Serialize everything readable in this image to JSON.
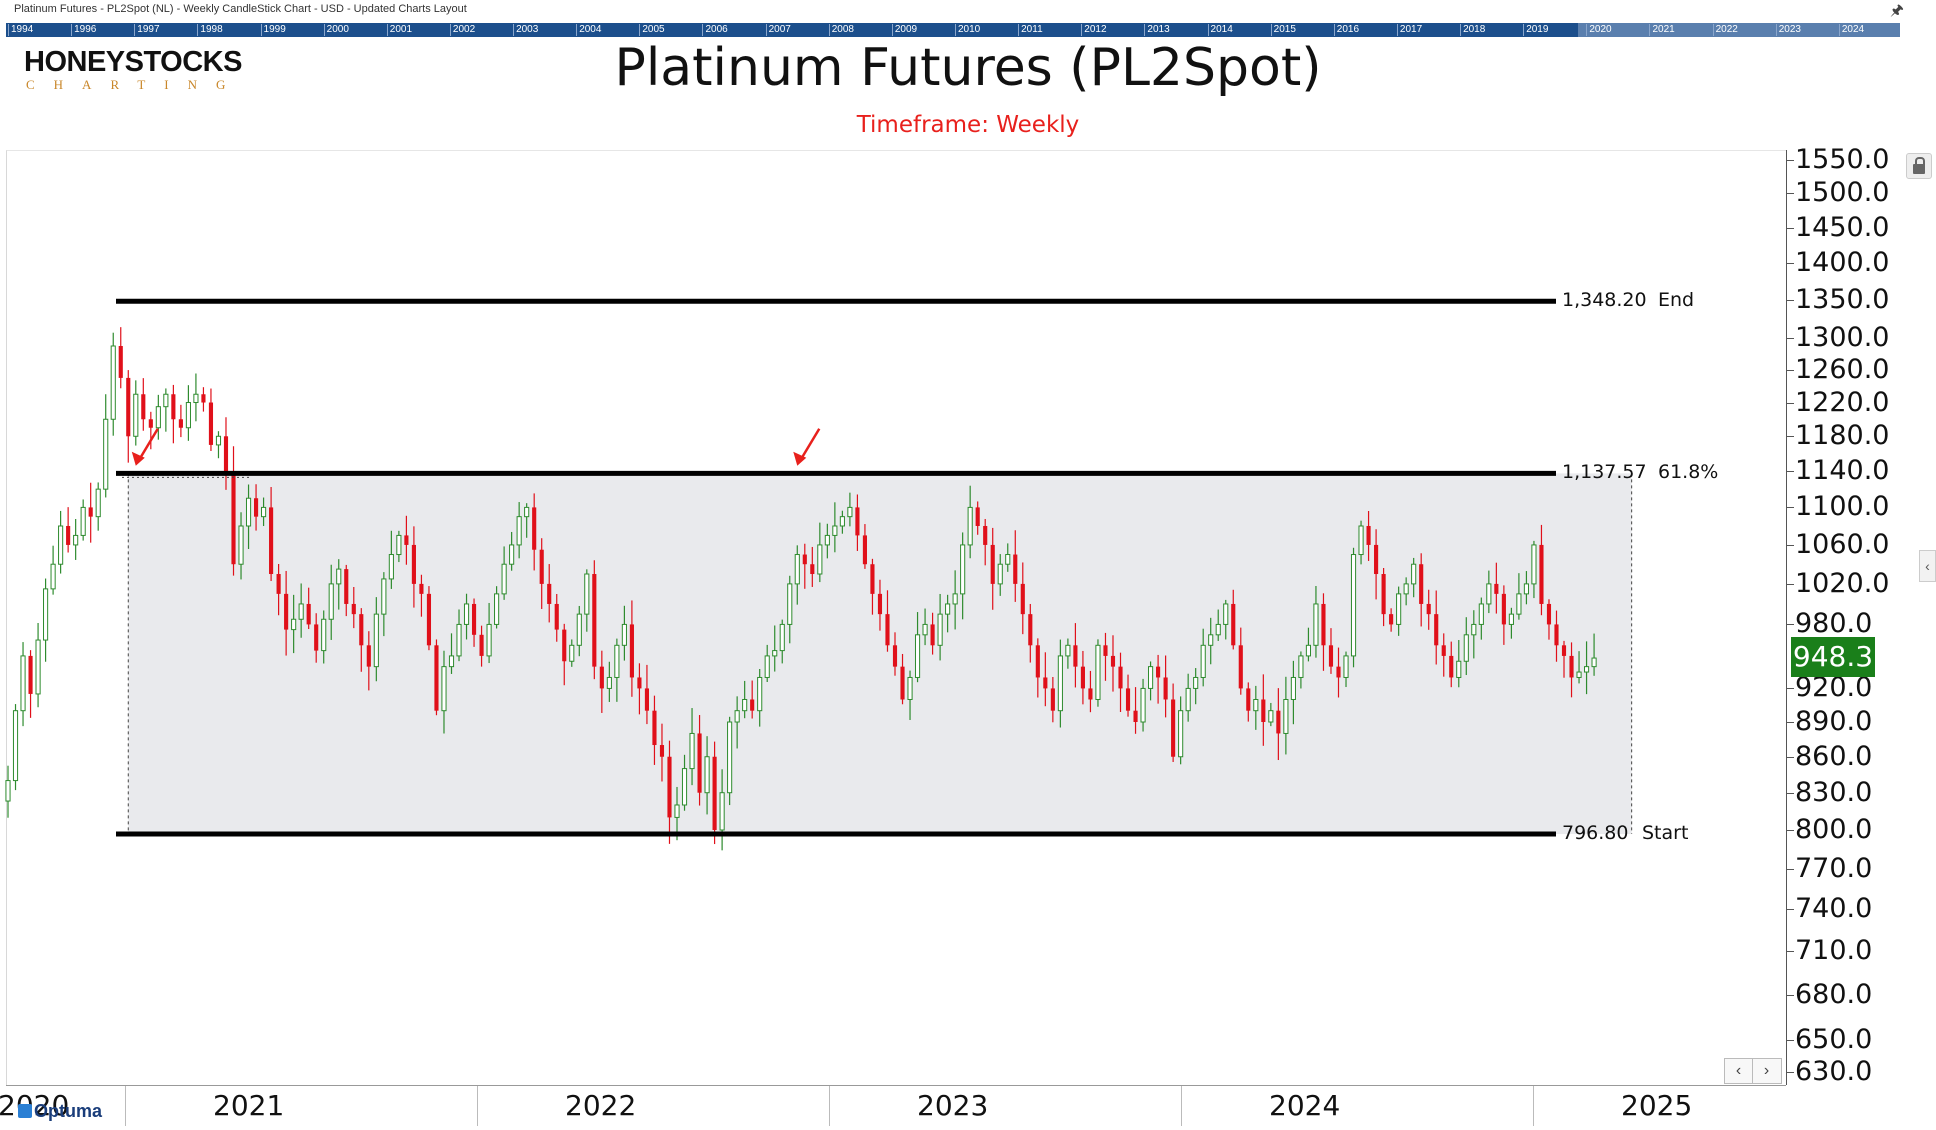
{
  "window": {
    "title": "Platinum Futures - PL2Spot (NL) - Weekly CandleStick Chart - USD - Updated Charts Layout",
    "overview_years": [
      "1994",
      "1996",
      "1997",
      "1998",
      "1999",
      "2000",
      "2001",
      "2002",
      "2003",
      "2004",
      "2005",
      "2006",
      "2007",
      "2008",
      "2009",
      "2010",
      "2011",
      "2012",
      "2013",
      "2014",
      "2015",
      "2016",
      "2017",
      "2018",
      "2019",
      "2020",
      "2021",
      "2022",
      "2023",
      "2024"
    ]
  },
  "logo": {
    "top": "HONEYSTOCKS",
    "bottom": "CHARTING"
  },
  "watermark": "Optuma",
  "chart_data": {
    "type": "candlestick",
    "title": "Platinum Futures (PL2Spot)",
    "subtitle": "Timeframe: Weekly",
    "last_price": "948.3",
    "colors": {
      "up": "#2e8b2e",
      "down": "#e0101a",
      "zone": "#e9eaed",
      "arrow": "#e8201c",
      "last_price": "#1a7f1a"
    },
    "y_axis": {
      "scale": "log",
      "ylim": [
        630,
        1550
      ],
      "tick_labels": [
        "1550.0",
        "1500.0",
        "1450.0",
        "1400.0",
        "1350.0",
        "1300.0",
        "1260.0",
        "1220.0",
        "1180.0",
        "1140.0",
        "1100.0",
        "1060.0",
        "1020.0",
        "980.0",
        "920.0",
        "890.0",
        "860.0",
        "830.0",
        "800.0",
        "770.0",
        "740.0",
        "710.0",
        "680.0",
        "650.0",
        "630.0"
      ]
    },
    "x_axis": {
      "labels": [
        "2020",
        "2021",
        "2022",
        "2023",
        "2024",
        "2025"
      ],
      "range": [
        "2020-11-09",
        "2025-05-19"
      ]
    },
    "levels": [
      {
        "value": 1348.2,
        "label": "1,348.20",
        "name": "End"
      },
      {
        "value": 1137.57,
        "label": "1,137.57",
        "name": "61.8%"
      },
      {
        "value": 796.8,
        "label": "796.80",
        "name": "Start"
      }
    ],
    "zone": {
      "from_date": "2021-03-01",
      "to_date": "2024-12-30",
      "low": 796.8,
      "high": 1137.57
    },
    "arrows": [
      {
        "date": "2021-03-08",
        "value": 1145
      },
      {
        "date": "2022-11-14",
        "value": 1145
      }
    ],
    "series": [
      {
        "start_date": "2020-11-09",
        "interval_days": 7,
        "close": [
          840,
          900,
          950,
          915,
          965,
          1015,
          1040,
          1080,
          1060,
          1070,
          1100,
          1090,
          1120,
          1200,
          1290,
          1250,
          1180,
          1230,
          1200,
          1190,
          1215,
          1230,
          1200,
          1190,
          1220,
          1230,
          1220,
          1170,
          1180,
          1140,
          1040,
          1080,
          1110,
          1090,
          1100,
          1030,
          1010,
          975,
          985,
          1000,
          980,
          955,
          985,
          1020,
          1035,
          1000,
          990,
          960,
          940,
          990,
          1025,
          1050,
          1070,
          1060,
          1020,
          1010,
          960,
          900,
          940,
          950,
          980,
          1000,
          970,
          950,
          980,
          1010,
          1040,
          1060,
          1090,
          1100,
          1055,
          1020,
          1000,
          975,
          945,
          960,
          990,
          1030,
          940,
          920,
          930,
          960,
          980,
          930,
          920,
          900,
          870,
          860,
          810,
          820,
          850,
          880,
          830,
          860,
          800,
          830,
          890,
          900,
          910,
          900,
          930,
          950,
          955,
          980,
          1020,
          1050,
          1040,
          1030,
          1060,
          1070,
          1080,
          1090,
          1100,
          1070,
          1040,
          1010,
          990,
          960,
          940,
          910,
          930,
          970,
          980,
          960,
          990,
          1000,
          1010,
          1060,
          1100,
          1080,
          1060,
          1020,
          1040,
          1050,
          1020,
          990,
          960,
          930,
          920,
          900,
          950,
          960,
          940,
          920,
          910,
          960,
          950,
          940,
          920,
          900,
          890,
          920,
          940,
          930,
          910,
          860,
          900,
          920,
          930,
          960,
          970,
          980,
          1000,
          960,
          920,
          900,
          910,
          890,
          900,
          880,
          910,
          930,
          950,
          960,
          1000,
          960,
          940,
          930,
          950,
          1050,
          1080,
          1060,
          1030,
          990,
          980,
          1010,
          1020,
          1040,
          1000,
          990,
          960,
          950,
          930,
          945,
          970,
          980,
          1000,
          1020,
          1010,
          980,
          990,
          1010,
          1020,
          1060,
          1000,
          980,
          960,
          950,
          930,
          935,
          940,
          948
        ]
      }
    ]
  }
}
